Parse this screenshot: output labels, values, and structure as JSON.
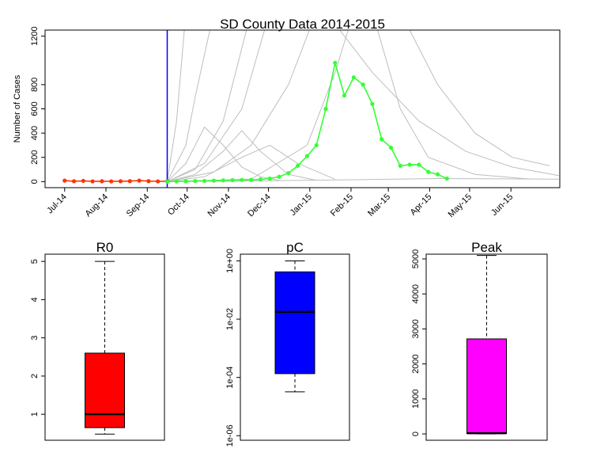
{
  "chart_data": [
    {
      "type": "line",
      "title": "SD County Data 2014-2015",
      "y_label": "Number of Cases",
      "xlim": [
        -2.1,
        53.1
      ],
      "ylim": [
        -50,
        1250
      ],
      "xticks": [
        {
          "value": 0,
          "label": "Jul-14"
        },
        {
          "value": 4.43,
          "label": "Aug-14"
        },
        {
          "value": 8.86,
          "label": "Sep-14"
        },
        {
          "value": 13.14,
          "label": "Oct-14"
        },
        {
          "value": 17.57,
          "label": "Nov-14"
        },
        {
          "value": 21.86,
          "label": "Dec-14"
        },
        {
          "value": 26.29,
          "label": "Jan-15"
        },
        {
          "value": 30.71,
          "label": "Feb-15"
        },
        {
          "value": 34.71,
          "label": "Mar-15"
        },
        {
          "value": 39.14,
          "label": "Apr-15"
        },
        {
          "value": 43.43,
          "label": "May-15"
        },
        {
          "value": 47.86,
          "label": "Jun-15"
        }
      ],
      "yticks": [
        0,
        200,
        400,
        600,
        800,
        1200
      ],
      "vline": {
        "x": 11,
        "color": "#0000ff"
      },
      "series": [
        {
          "color": "#bebebe",
          "x": [
            11,
            14,
            17,
            20
          ],
          "values": [
            0,
            100,
            500,
            1400
          ]
        },
        {
          "color": "#bebebe",
          "x": [
            11,
            15,
            19,
            22
          ],
          "values": [
            0,
            150,
            600,
            1400
          ]
        },
        {
          "color": "#bebebe",
          "x": [
            11,
            16,
            20,
            24,
            27
          ],
          "values": [
            0,
            80,
            300,
            800,
            1400
          ]
        },
        {
          "color": "#bebebe",
          "x": [
            11,
            13,
            15,
            17,
            19,
            21,
            23
          ],
          "values": [
            0,
            150,
            450,
            300,
            120,
            40,
            10
          ]
        },
        {
          "color": "#bebebe",
          "x": [
            11,
            14,
            17,
            19,
            21,
            24,
            27
          ],
          "values": [
            0,
            60,
            250,
            420,
            250,
            60,
            10
          ]
        },
        {
          "color": "#bebebe",
          "x": [
            11,
            15,
            19,
            22,
            25,
            29
          ],
          "values": [
            0,
            40,
            200,
            300,
            150,
            20
          ]
        },
        {
          "color": "#bebebe",
          "x": [
            11,
            13,
            14,
            16
          ],
          "values": [
            0,
            300,
            700,
            1400
          ]
        },
        {
          "color": "#bebebe",
          "x": [
            11,
            20,
            26,
            29,
            31
          ],
          "values": [
            0,
            20,
            300,
            900,
            1400
          ]
        },
        {
          "color": "#bebebe",
          "x": [
            28,
            33,
            38,
            43,
            48,
            53
          ],
          "values": [
            1400,
            900,
            500,
            250,
            120,
            50
          ]
        },
        {
          "color": "#bebebe",
          "x": [
            36,
            40,
            44,
            48,
            52
          ],
          "values": [
            1400,
            800,
            400,
            200,
            130
          ]
        },
        {
          "color": "#bebebe",
          "x": [
            11,
            20,
            30,
            40,
            53
          ],
          "values": [
            0,
            5,
            15,
            25,
            20
          ]
        },
        {
          "color": "#bebebe",
          "x": [
            11,
            12,
            13
          ],
          "values": [
            0,
            500,
            1400
          ]
        },
        {
          "color": "#bebebe",
          "x": [
            33,
            36,
            39,
            44,
            50
          ],
          "values": [
            1400,
            600,
            200,
            60,
            20
          ]
        },
        {
          "color": "#ff3300",
          "markers": true,
          "x": [
            0,
            1,
            2,
            3,
            4,
            5,
            6,
            7,
            8,
            9,
            10,
            11
          ],
          "values": [
            8,
            3,
            6,
            2,
            3,
            2,
            3,
            4,
            8,
            4,
            2,
            3
          ]
        },
        {
          "color": "#33ff33",
          "markers": true,
          "x": [
            11,
            12,
            13,
            14,
            15,
            16,
            17,
            18,
            19,
            20,
            21,
            22,
            23,
            24,
            25,
            26,
            27,
            28,
            29,
            30,
            31,
            32,
            33,
            34,
            35,
            36,
            37,
            38,
            39,
            40,
            41
          ],
          "values": [
            0,
            2,
            3,
            5,
            6,
            8,
            10,
            12,
            14,
            15,
            18,
            25,
            40,
            70,
            130,
            210,
            300,
            600,
            980,
            710,
            860,
            800,
            640,
            350,
            280,
            130,
            140,
            140,
            80,
            60,
            25
          ]
        }
      ]
    },
    {
      "type": "box",
      "title": "R0",
      "ylim": [
        0.32,
        5.19
      ],
      "yticks": [
        1,
        2,
        3,
        4,
        5
      ],
      "boxes": [
        {
          "min": 0.48,
          "q1": 0.65,
          "median": 1.0,
          "q3": 2.6,
          "max": 5.0,
          "color": "#ff0000"
        }
      ]
    },
    {
      "type": "box",
      "title": "pC",
      "log_scale": true,
      "ylim": [
        7e-07,
        1.7
      ],
      "yticks": [
        {
          "value": 1e-06,
          "label": "1e-06"
        },
        {
          "value": 0.0001,
          "label": "1e-04"
        },
        {
          "value": 0.01,
          "label": "1e-02"
        },
        {
          "value": 1,
          "label": "1e+00"
        }
      ],
      "boxes": [
        {
          "min": 3.2e-05,
          "q1": 0.000135,
          "median": 0.0178,
          "q3": 0.42,
          "max": 1,
          "color": "#0000ff"
        }
      ]
    },
    {
      "type": "box",
      "title": "Peak",
      "ylim": [
        -181,
        5136
      ],
      "yticks": [
        0,
        1000,
        2000,
        3000,
        4000,
        5000
      ],
      "boxes": [
        {
          "min": 0,
          "q1": 10,
          "median": 20,
          "q3": 2715,
          "max": 5100,
          "color": "#ff00ff"
        }
      ]
    }
  ]
}
